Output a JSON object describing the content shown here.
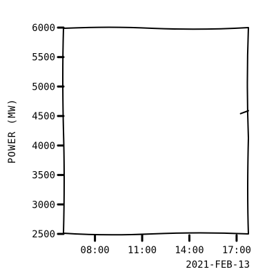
{
  "chart_data": {
    "type": "line",
    "title": "",
    "xlabel": "",
    "ylabel": "POWER (MW)",
    "date_label": "2021-FEB-13",
    "x_range": [
      "2021-02-13T06:00",
      "2021-02-13T17:45"
    ],
    "ylim": [
      2500,
      6000
    ],
    "y_ticks": [
      2500,
      3000,
      3500,
      4000,
      4500,
      5000,
      5500,
      6000
    ],
    "x_ticks": [
      {
        "time": "2021-02-13T08:00",
        "label": "08:00"
      },
      {
        "time": "2021-02-13T11:00",
        "label": "11:00"
      },
      {
        "time": "2021-02-13T14:00",
        "label": "14:00"
      },
      {
        "time": "2021-02-13T17:00",
        "label": "17:00"
      }
    ],
    "grid": false,
    "series": [
      {
        "color": "#000000",
        "points": [
          {
            "x": "2021-02-13T17:15",
            "y": 4540
          },
          {
            "x": "2021-02-13T17:45",
            "y": 4590
          }
        ]
      }
    ]
  }
}
